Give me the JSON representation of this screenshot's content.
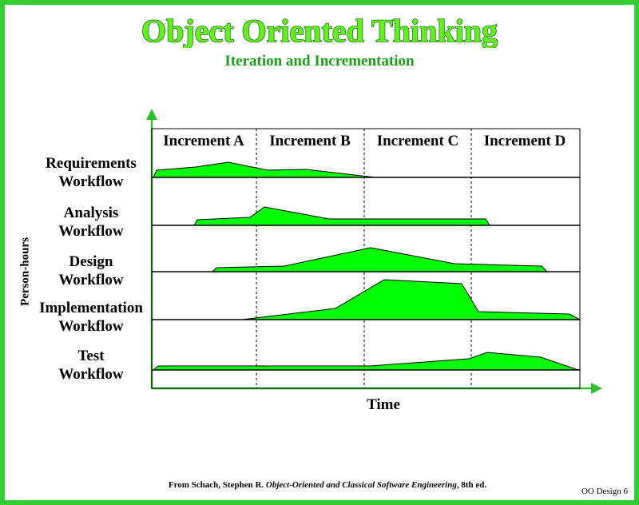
{
  "title": "Object Oriented Thinking",
  "subtitle": "Iteration and Incrementation",
  "y_axis_label": "Person-hours",
  "x_axis_label": "Time",
  "increments": [
    "Increment A",
    "Increment B",
    "Increment C",
    "Increment D"
  ],
  "workflows": [
    {
      "line1": "Requirements",
      "line2": "Workflow"
    },
    {
      "line1": "Analysis",
      "line2": "Workflow"
    },
    {
      "line1": "Design",
      "line2": "Workflow"
    },
    {
      "line1": "Implementation",
      "line2": "Workflow"
    },
    {
      "line1": "Test",
      "line2": "Workflow"
    }
  ],
  "footer": {
    "prefix": "From Schach, Stephen R. ",
    "book": "Object-Oriented and Classical Software Engineering",
    "suffix": ", 8th ed."
  },
  "page_label": "OO Design 6",
  "colors": {
    "frame": "#33cc33",
    "fill": "#00ff00",
    "title": "#66ee22",
    "subtitle": "#1a9e1a"
  }
}
